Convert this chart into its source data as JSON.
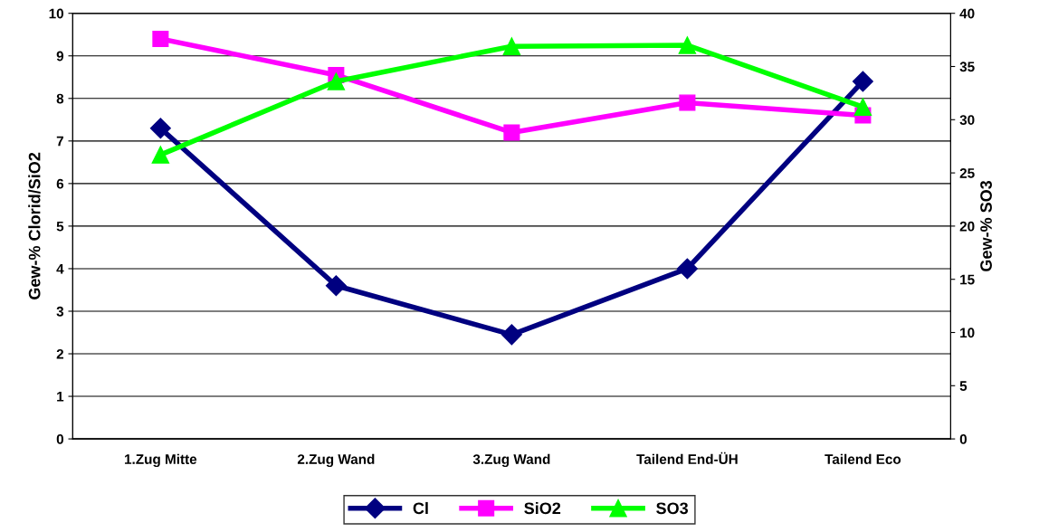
{
  "chart_data": {
    "type": "line",
    "ylabel": "Gew-% Clorid/SiO2",
    "y2label": "Gew-% SO3",
    "categories": [
      "1.Zug Mitte",
      "2.Zug Wand",
      "3.Zug Wand",
      "Tailend End-ÜH",
      "Tailend Eco"
    ],
    "series": [
      {
        "name": "Cl",
        "color": "#000080",
        "marker": "diamond",
        "values": [
          7.3,
          3.6,
          2.45,
          4.0,
          8.4
        ]
      },
      {
        "name": "SiO2",
        "color": "#ff00ff",
        "marker": "square",
        "values": [
          9.4,
          8.55,
          7.2,
          7.9,
          7.6
        ]
      },
      {
        "name": "SO3",
        "color": "#00ff00",
        "marker": "triangle",
        "axis": "y2",
        "values": [
          26.7,
          33.6,
          36.9,
          37.0,
          31.2
        ]
      }
    ],
    "ylim": [
      0,
      10
    ],
    "yticks": [
      0,
      1,
      2,
      3,
      4,
      5,
      6,
      7,
      8,
      9,
      10
    ],
    "y2lim": [
      0,
      40
    ],
    "y2ticks": [
      0,
      5,
      10,
      15,
      20,
      25,
      30,
      35,
      40
    ],
    "grid": "y",
    "legend": "bottom",
    "line_style": "solid"
  }
}
